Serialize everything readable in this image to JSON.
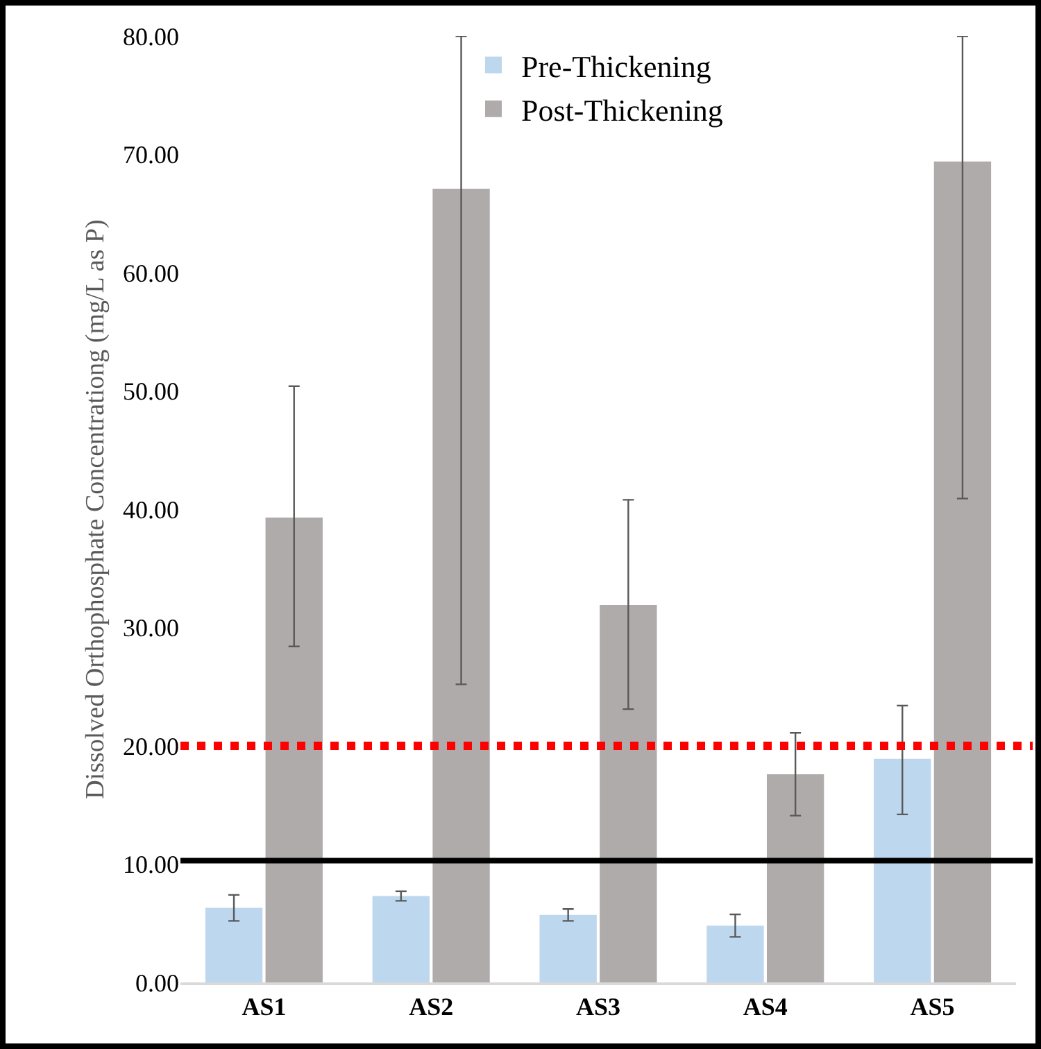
{
  "chart_data": {
    "type": "bar",
    "ylabel": "Dissolved Orthophosphate Concentrationg (mg/L as P)",
    "categories": [
      "AS1",
      "AS2",
      "AS3",
      "AS4",
      "AS5"
    ],
    "series": [
      {
        "name": "Pre-Thickening",
        "color": "#bdd7ee",
        "values": [
          6.3,
          7.3,
          5.7,
          4.8,
          18.9
        ],
        "errors": [
          1.1,
          0.4,
          0.5,
          0.95,
          [
            14.2,
            23.4
          ]
        ]
      },
      {
        "name": "Post-Thickening",
        "color": "#afabab",
        "values": [
          39.3,
          67.1,
          31.9,
          17.6,
          69.4
        ],
        "errors": [
          [
            28.4,
            50.4
          ],
          [
            25.2,
            80
          ],
          [
            23.1,
            40.8
          ],
          [
            14.1,
            21.1
          ],
          [
            40.9,
            80
          ]
        ]
      }
    ],
    "ylim": [
      0,
      80
    ],
    "yticks": [
      {
        "value": 0,
        "label": "0.00"
      },
      {
        "value": 10,
        "label": "10.00"
      },
      {
        "value": 20,
        "label": "20.00"
      },
      {
        "value": 30,
        "label": "30.00"
      },
      {
        "value": 40,
        "label": "40.00"
      },
      {
        "value": 50,
        "label": "50.00"
      },
      {
        "value": 60,
        "label": "60.00"
      },
      {
        "value": 70,
        "label": "70.00"
      },
      {
        "value": 80,
        "label": "80.00"
      }
    ],
    "ref_lines": [
      {
        "axis": "y",
        "value": 20,
        "color": "#ff0000",
        "line_style": "dotted"
      },
      {
        "axis": "y",
        "value": 10.3,
        "color": "#000000",
        "line_style": "solid"
      }
    ],
    "legend": "top",
    "grid": false
  }
}
